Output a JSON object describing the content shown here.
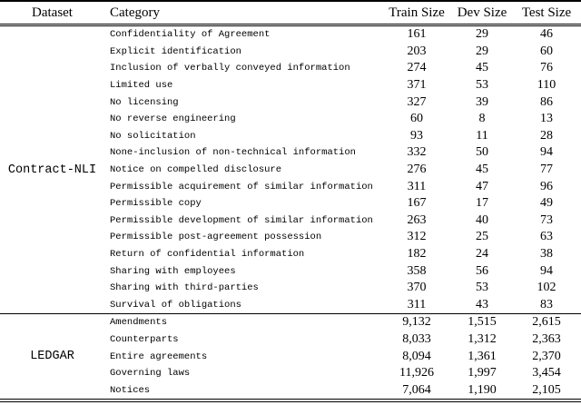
{
  "table": {
    "headers": [
      "Dataset",
      "Category",
      "Train Size",
      "Dev Size",
      "Test Size"
    ],
    "groups": [
      {
        "dataset": "Contract-NLI",
        "rows": [
          {
            "category": "Confidentiality of Agreement",
            "train": "161",
            "dev": "29",
            "test": "46"
          },
          {
            "category": "Explicit identification",
            "train": "203",
            "dev": "29",
            "test": "60"
          },
          {
            "category": "Inclusion of verbally conveyed information",
            "train": "274",
            "dev": "45",
            "test": "76"
          },
          {
            "category": "Limited use",
            "train": "371",
            "dev": "53",
            "test": "110"
          },
          {
            "category": "No licensing",
            "train": "327",
            "dev": "39",
            "test": "86"
          },
          {
            "category": "No reverse engineering",
            "train": "60",
            "dev": "8",
            "test": "13"
          },
          {
            "category": "No solicitation",
            "train": "93",
            "dev": "11",
            "test": "28"
          },
          {
            "category": "None-inclusion of non-technical information",
            "train": "332",
            "dev": "50",
            "test": "94"
          },
          {
            "category": "Notice on compelled disclosure",
            "train": "276",
            "dev": "45",
            "test": "77"
          },
          {
            "category": "Permissible acquirement of similar information",
            "train": "311",
            "dev": "47",
            "test": "96"
          },
          {
            "category": "Permissible copy",
            "train": "167",
            "dev": "17",
            "test": "49"
          },
          {
            "category": "Permissible development of similar information",
            "train": "263",
            "dev": "40",
            "test": "73"
          },
          {
            "category": "Permissible post-agreement possession",
            "train": "312",
            "dev": "25",
            "test": "63"
          },
          {
            "category": "Return of confidential information",
            "train": "182",
            "dev": "24",
            "test": "38"
          },
          {
            "category": "Sharing with employees",
            "train": "358",
            "dev": "56",
            "test": "94"
          },
          {
            "category": "Sharing with third-parties",
            "train": "370",
            "dev": "53",
            "test": "102"
          },
          {
            "category": "Survival of obligations",
            "train": "311",
            "dev": "43",
            "test": "83"
          }
        ]
      },
      {
        "dataset": "LEDGAR",
        "rows": [
          {
            "category": "Amendments",
            "train": "9,132",
            "dev": "1,515",
            "test": "2,615"
          },
          {
            "category": "Counterparts",
            "train": "8,033",
            "dev": "1,312",
            "test": "2,363"
          },
          {
            "category": "Entire agreements",
            "train": "8,094",
            "dev": "1,361",
            "test": "2,370"
          },
          {
            "category": "Governing laws",
            "train": "11,926",
            "dev": "1,997",
            "test": "3,454"
          },
          {
            "category": "Notices",
            "train": "7,064",
            "dev": "1,190",
            "test": "2,105"
          }
        ]
      }
    ],
    "colors": {
      "text": "#000000",
      "rule": "#000000",
      "background": "#ffffff"
    }
  }
}
